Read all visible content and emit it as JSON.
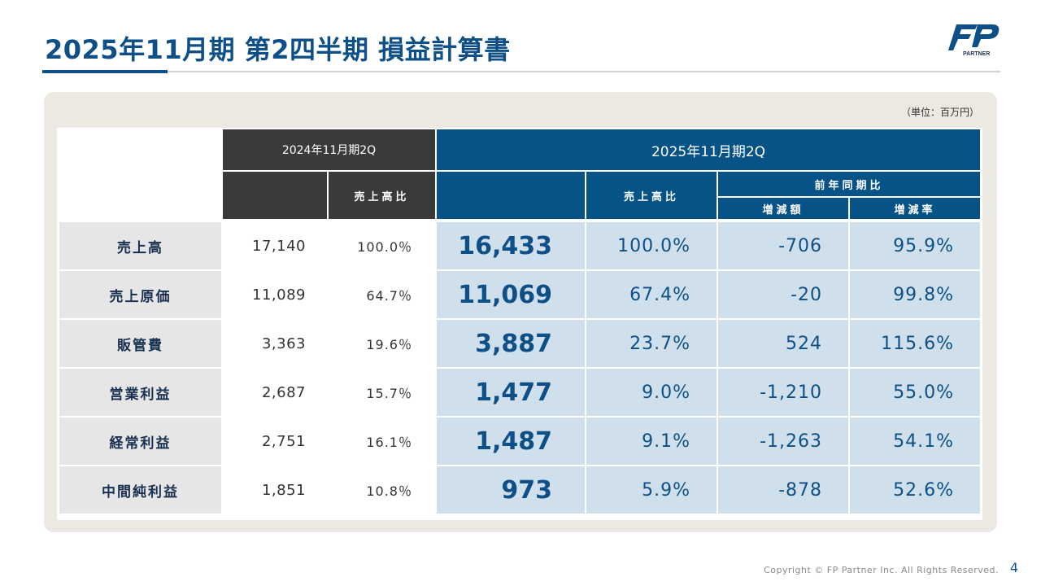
{
  "title": "2025年11月期 第2四半期 損益計算書",
  "logo": {
    "initials": "FP",
    "sub": "PARTNER"
  },
  "unit": "（単位：百万円）",
  "headers": {
    "prev_period": "2024年11月期2Q",
    "prev_ratio": "売上高比",
    "curr_period": "2025年11月期2Q",
    "curr_ratio": "売上高比",
    "yoy": "前年同期比",
    "change_amount": "増減額",
    "change_rate": "増減率"
  },
  "rows": [
    {
      "label": "売上高",
      "prev": "17,140",
      "prev_pct": "100.0％",
      "curr": "16,433",
      "curr_pct": "100.0%",
      "diff": "-706",
      "rate": "95.9%"
    },
    {
      "label": "売上原価",
      "prev": "11,089",
      "prev_pct": "64.7％",
      "curr": "11,069",
      "curr_pct": "67.4%",
      "diff": "-20",
      "rate": "99.8%"
    },
    {
      "label": "販管費",
      "prev": "3,363",
      "prev_pct": "19.6％",
      "curr": "3,887",
      "curr_pct": "23.7%",
      "diff": "524",
      "rate": "115.6%"
    },
    {
      "label": "営業利益",
      "prev": "2,687",
      "prev_pct": "15.7％",
      "curr": "1,477",
      "curr_pct": "9.0%",
      "diff": "-1,210",
      "rate": "55.0%"
    },
    {
      "label": "経常利益",
      "prev": "2,751",
      "prev_pct": "16.1％",
      "curr": "1,487",
      "curr_pct": "9.1%",
      "diff": "-1,263",
      "rate": "54.1%"
    },
    {
      "label": "中間純利益",
      "prev": "1,851",
      "prev_pct": "10.8％",
      "curr": "973",
      "curr_pct": "5.9%",
      "diff": "-878",
      "rate": "52.6%"
    }
  ],
  "footer": "Copyright © FP Partner Inc. All Rights Reserved.",
  "page_number": "4",
  "colors": {
    "brand": "#0d4f86",
    "header_dark": "#3a3a3a",
    "highlight": "#cfe0ec",
    "panel": "#ece8e2"
  }
}
